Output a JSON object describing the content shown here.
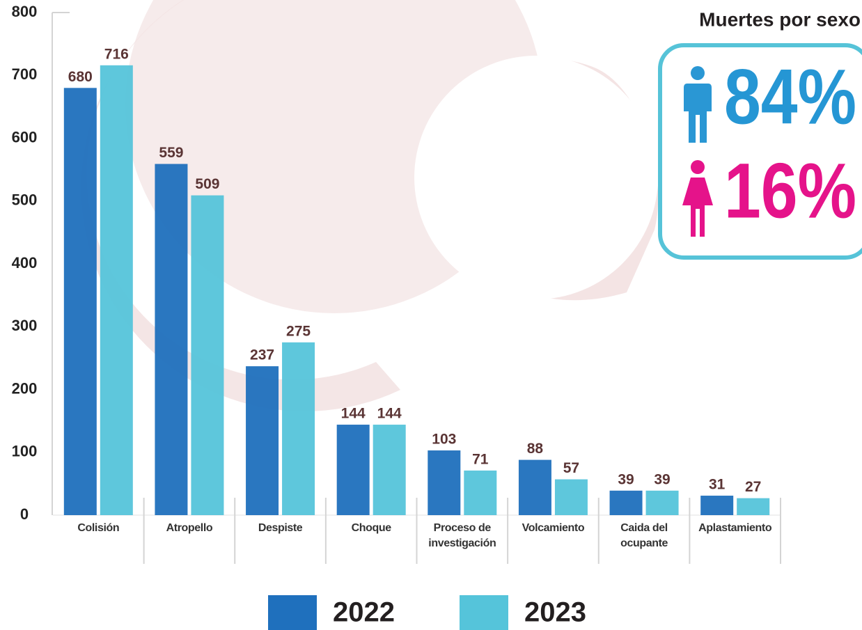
{
  "chart_data": {
    "type": "bar",
    "categories": [
      "Colisión",
      "Atropello",
      "Despiste",
      "Choque",
      "Proceso de investigación",
      "Volcamiento",
      "Caida del ocupante",
      "Aplastamiento"
    ],
    "series": [
      {
        "name": "2022",
        "color": "#1f70bd",
        "values": [
          680,
          559,
          237,
          144,
          103,
          88,
          39,
          31
        ]
      },
      {
        "name": "2023",
        "color": "#55c4da",
        "values": [
          716,
          509,
          275,
          144,
          71,
          57,
          39,
          27
        ]
      }
    ],
    "ylim": [
      0,
      800
    ],
    "yticks": [
      0,
      100,
      200,
      300,
      400,
      500,
      600,
      700,
      800
    ],
    "grid": false,
    "legend": "bottom"
  },
  "inset": {
    "title": "Muertes por sexo",
    "labels": [
      "84%",
      "16%"
    ]
  }
}
